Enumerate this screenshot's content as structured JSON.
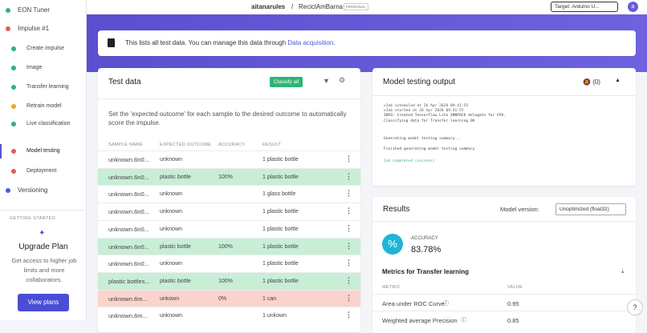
{
  "topbar": {
    "user": "aitanarules",
    "separator": "/",
    "project": "ReciclAmBarna",
    "badge": "PERSONAL",
    "target": "Target: Arduino U...",
    "avatar": "a"
  },
  "sidebar": {
    "items": [
      {
        "label": "EON Tuner"
      },
      {
        "label": "Impulse #1"
      },
      {
        "label": "Create impulse"
      },
      {
        "label": "Image"
      },
      {
        "label": "Transfer learning"
      },
      {
        "label": "Retrain model"
      },
      {
        "label": "Live classification"
      },
      {
        "label": "Model testing"
      },
      {
        "label": "Deployment"
      },
      {
        "label": "Versioning"
      }
    ],
    "section": "GETTING STARTED",
    "upgrade_title": "Upgrade Plan",
    "upgrade_text": "Get access to higher job limits and more collaborators.",
    "button": "View plans"
  },
  "banner": {
    "text": "This lists all test data. You can manage this data through",
    "link": "Data acquisition",
    "end": "."
  },
  "test_data": {
    "title": "Test data",
    "button": "Classify all",
    "description": "Set the 'expected outcome' for each sample to the desired outcome to automatically score the impulse.",
    "columns": [
      "SAMPLE NAME",
      "EXPECTED OUTCOME",
      "ACCURACY",
      "RESULT"
    ],
    "rows": [
      {
        "name": "unknown.6n0...",
        "expected": "unknown",
        "result": "1 plastic bottle"
      },
      {
        "name": "unknown.6n0...",
        "expected": "plastic bottle",
        "accuracy": "100%",
        "result": "1 plastic bottle",
        "color": "#c8eed6"
      },
      {
        "name": "unknown.6n0...",
        "expected": "unknown",
        "result": "1 glass bottle"
      },
      {
        "name": "unknown.6n0...",
        "expected": "unknown",
        "result": "1 plastic bottle"
      },
      {
        "name": "unknown.6n0...",
        "expected": "unknown",
        "result": "1 plastic bottle"
      },
      {
        "name": "unknown.6n0...",
        "expected": "plastic bottle",
        "accuracy": "100%",
        "result": "1 plastic bottle",
        "color": "#c8eed6"
      },
      {
        "name": "unknown.6n0...",
        "expected": "unknown",
        "result": "1 plastic bottle"
      },
      {
        "name": "plastic bottles...",
        "expected": "plastic bottle",
        "accuracy": "100%",
        "result": "1 plastic bottle",
        "color": "#c8eed6"
      },
      {
        "name": "unknown.6m...",
        "expected": "unkown",
        "accuracy": "0%",
        "result": "1 can",
        "color": "#fbd3cd"
      },
      {
        "name": "unknown.6m...",
        "expected": "unknown",
        "result": "1 unkown"
      }
    ]
  },
  "output": {
    "title": "Model testing output",
    "count": "(0)",
    "log": [
      "✔Job scheduled at 26 Apr 2020 09:41:55",
      "✔Job started at 26 Apr 2020 09:41:55",
      "INFO: Created TensorFlow Lite XNNPACK delegate for CPU.",
      "Classifying data for Transfer learning OK",
      "Generating model testing summary...",
      "Finished generating model testing summary",
      "Job completed (success)"
    ]
  },
  "results": {
    "title": "Results",
    "version_label": "Model version:",
    "version": "Unoptimized (float32)",
    "accuracy_label": "ACCURACY",
    "accuracy": "83.78%",
    "metrics_title": "Metrics for Transfer learning",
    "columns": [
      "METRIC",
      "VALUE"
    ],
    "metrics": [
      [
        "Area under ROC Curve",
        "0.95"
      ],
      [
        "Weighted average Precision",
        "0.85"
      ]
    ]
  }
}
